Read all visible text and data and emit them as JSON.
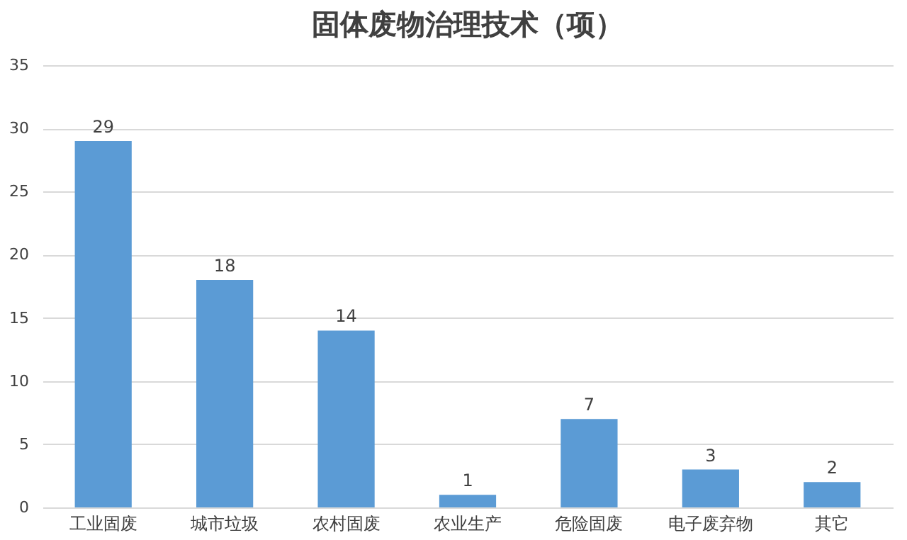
{
  "chart_data": {
    "type": "bar",
    "title": "固体废物治理技术（项）",
    "categories": [
      "工业固废",
      "城市垃圾",
      "农村固废",
      "农业生产",
      "危险固废",
      "电子废弃物",
      "其它"
    ],
    "values": [
      29,
      18,
      14,
      1,
      7,
      3,
      2
    ],
    "color": "#5b9bd5",
    "ylim": [
      0,
      35
    ],
    "yticks": [
      0,
      5,
      10,
      15,
      20,
      25,
      30,
      35
    ],
    "grid": "y",
    "data_labels": true
  }
}
